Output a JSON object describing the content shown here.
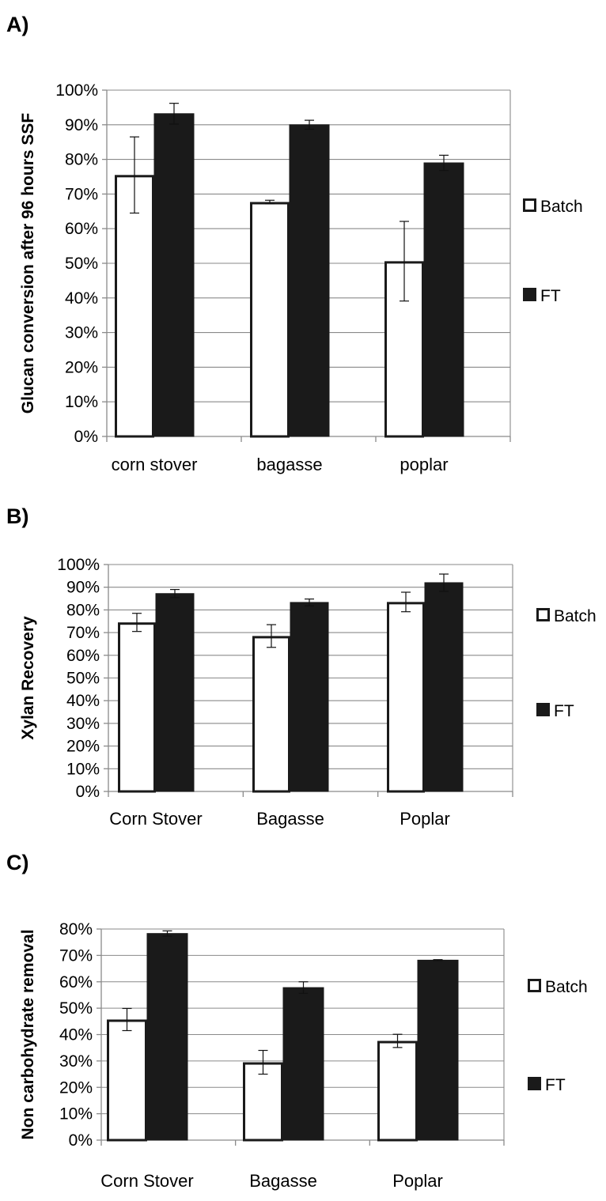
{
  "chart_data": [
    {
      "panel": "A)",
      "type": "bar",
      "categories": [
        "corn stover",
        "bagasse",
        "poplar"
      ],
      "ylabel": "Glucan conversion after 96 hours SSF",
      "yticks": [
        "0%",
        "10%",
        "20%",
        "30%",
        "40%",
        "50%",
        "60%",
        "70%",
        "80%",
        "90%",
        "100%"
      ],
      "ylim": [
        0,
        100
      ],
      "grid": true,
      "legend": "right",
      "series": [
        {
          "name": "Batch",
          "values": [
            75.5,
            67.7,
            50.6
          ],
          "errors": [
            11,
            0.5,
            11.5
          ],
          "color": "#ffffff"
        },
        {
          "name": "FT",
          "values": [
            93.2,
            90.0,
            79.0
          ],
          "errors": [
            3,
            1.3,
            2.2
          ],
          "color": "#1a1a1a"
        }
      ]
    },
    {
      "panel": "B)",
      "type": "bar",
      "categories": [
        "Corn Stover",
        "Bagasse",
        "Poplar"
      ],
      "ylabel": "Xylan Recovery",
      "yticks": [
        "0%",
        "10%",
        "20%",
        "30%",
        "40%",
        "50%",
        "60%",
        "70%",
        "80%",
        "90%",
        "100%"
      ],
      "ylim": [
        0,
        100
      ],
      "grid": true,
      "legend": "right",
      "series": [
        {
          "name": "Batch",
          "values": [
            74.5,
            68.5,
            83.5
          ],
          "errors": [
            4,
            5,
            4.3
          ],
          "color": "#ffffff"
        },
        {
          "name": "FT",
          "values": [
            87.2,
            83.3,
            92.0
          ],
          "errors": [
            1.8,
            1.5,
            3.8
          ],
          "color": "#1a1a1a"
        }
      ]
    },
    {
      "panel": "C)",
      "type": "bar",
      "categories": [
        "Corn Stover",
        "Bagasse",
        "Poplar"
      ],
      "ylabel": "Non carbohydrate removal",
      "yticks": [
        "0%",
        "10%",
        "20%",
        "30%",
        "40%",
        "50%",
        "60%",
        "70%",
        "80%"
      ],
      "ylim": [
        0,
        80
      ],
      "grid": true,
      "legend": "right",
      "series": [
        {
          "name": "Batch",
          "values": [
            45.7,
            29.5,
            37.6
          ],
          "errors": [
            4.2,
            4.5,
            2.5
          ],
          "color": "#ffffff"
        },
        {
          "name": "FT",
          "values": [
            78.3,
            57.8,
            68.2
          ],
          "errors": [
            1,
            2.2,
            0.2
          ],
          "color": "#1a1a1a"
        }
      ]
    }
  ]
}
